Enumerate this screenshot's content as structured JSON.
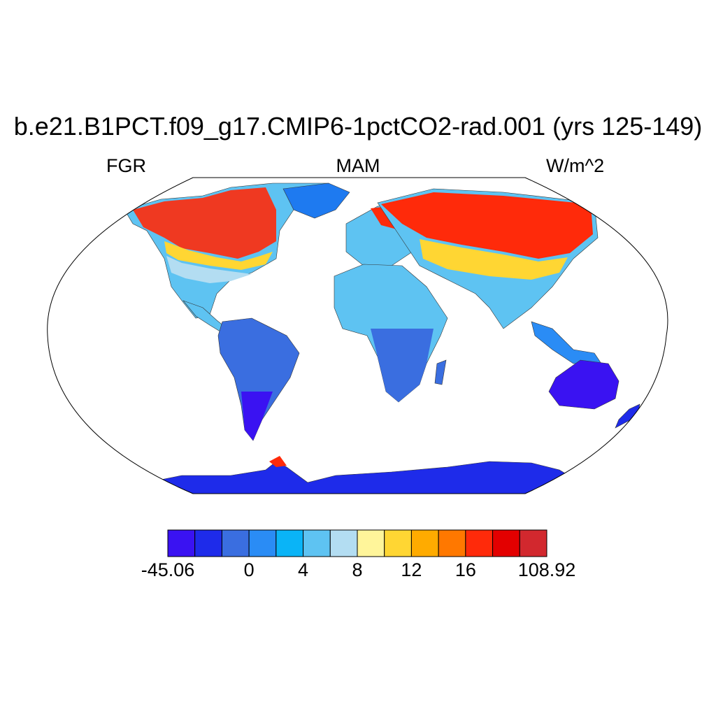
{
  "title": "b.e21.B1PCT.f09_g17.CMIP6-1pctCO2-rad.001 (yrs 125-149)",
  "subtitle_left": "FGR",
  "subtitle_center": "MAM",
  "subtitle_right": "W/m^2",
  "colorbar": {
    "colors": [
      "#3a12f2",
      "#1e2bea",
      "#3a6ee0",
      "#2a8cf5",
      "#0ab4f7",
      "#5ec3f2",
      "#b3ddf2",
      "#fff59a",
      "#ffd633",
      "#ffab00",
      "#ff7800",
      "#ff2a0a",
      "#e30000",
      "#d2282e"
    ],
    "labels": [
      "-45.06",
      "0",
      "4",
      "8",
      "12",
      "16",
      "108.92"
    ]
  },
  "map": {
    "projection": "robinson",
    "land_fill": "#5ec3f2",
    "ocean_fill": "#ffffff"
  }
}
